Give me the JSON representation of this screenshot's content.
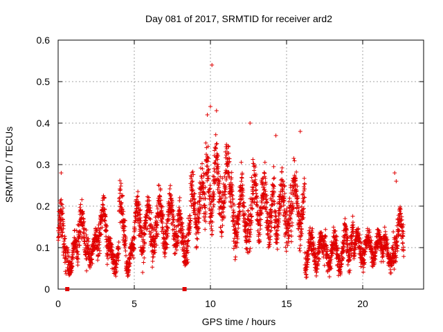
{
  "chart_data": {
    "type": "scatter",
    "title": "Day 081 of 2017, SRMTID for receiver ard2",
    "xlabel": "GPS time / hours",
    "ylabel": "SRMTID / TECUs",
    "xlim": [
      0,
      24
    ],
    "ylim": [
      0,
      0.6
    ],
    "xticks": [
      0,
      5,
      10,
      15,
      20
    ],
    "xtick_labels": [
      "0",
      "5",
      "10",
      "15",
      "20"
    ],
    "yticks": [
      0,
      0.1,
      0.2,
      0.3,
      0.4,
      0.5,
      0.6
    ],
    "ytick_labels": [
      "0",
      "0.1",
      "0.2",
      "0.3",
      "0.4",
      "0.5",
      "0.6"
    ],
    "grid": true,
    "marker": "plus",
    "color": "#e00000",
    "outliers": [
      {
        "x": 10.1,
        "y": 0.54
      },
      {
        "x": 10.0,
        "y": 0.44
      },
      {
        "x": 10.4,
        "y": 0.43
      },
      {
        "x": 12.6,
        "y": 0.4
      },
      {
        "x": 9.8,
        "y": 0.42
      },
      {
        "x": 14.3,
        "y": 0.37
      },
      {
        "x": 15.9,
        "y": 0.38
      },
      {
        "x": 22.1,
        "y": 0.28
      },
      {
        "x": 22.2,
        "y": 0.26
      },
      {
        "x": 8.3,
        "y": 0.0
      },
      {
        "x": 0.6,
        "y": 0.0
      },
      {
        "x": 0.2,
        "y": 0.28
      }
    ],
    "segments": [
      {
        "x0": 0.0,
        "x1": 0.55,
        "mean": 0.13,
        "spread": 0.09
      },
      {
        "x0": 0.6,
        "x1": 1.3,
        "mean": 0.08,
        "spread": 0.06
      },
      {
        "x0": 1.3,
        "x1": 1.95,
        "mean": 0.13,
        "spread": 0.08
      },
      {
        "x0": 1.95,
        "x1": 2.6,
        "mean": 0.1,
        "spread": 0.05
      },
      {
        "x0": 2.6,
        "x1": 3.2,
        "mean": 0.15,
        "spread": 0.08
      },
      {
        "x0": 3.2,
        "x1": 4.0,
        "mean": 0.08,
        "spread": 0.05
      },
      {
        "x0": 4.0,
        "x1": 4.45,
        "mean": 0.17,
        "spread": 0.09
      },
      {
        "x0": 4.45,
        "x1": 5.0,
        "mean": 0.08,
        "spread": 0.05
      },
      {
        "x0": 5.0,
        "x1": 6.5,
        "mean": 0.15,
        "spread": 0.09
      },
      {
        "x0": 6.5,
        "x1": 8.0,
        "mean": 0.16,
        "spread": 0.09
      },
      {
        "x0": 8.0,
        "x1": 8.7,
        "mean": 0.12,
        "spread": 0.08
      },
      {
        "x0": 8.7,
        "x1": 9.7,
        "mean": 0.2,
        "spread": 0.1
      },
      {
        "x0": 9.7,
        "x1": 11.3,
        "mean": 0.25,
        "spread": 0.12
      },
      {
        "x0": 11.3,
        "x1": 12.5,
        "mean": 0.18,
        "spread": 0.1
      },
      {
        "x0": 12.5,
        "x1": 13.2,
        "mean": 0.2,
        "spread": 0.11
      },
      {
        "x0": 13.2,
        "x1": 14.2,
        "mean": 0.2,
        "spread": 0.1
      },
      {
        "x0": 14.2,
        "x1": 15.3,
        "mean": 0.19,
        "spread": 0.1
      },
      {
        "x0": 15.3,
        "x1": 16.2,
        "mean": 0.2,
        "spread": 0.11
      },
      {
        "x0": 16.2,
        "x1": 17.5,
        "mean": 0.09,
        "spread": 0.06
      },
      {
        "x0": 17.5,
        "x1": 18.8,
        "mean": 0.09,
        "spread": 0.06
      },
      {
        "x0": 18.8,
        "x1": 19.4,
        "mean": 0.12,
        "spread": 0.07
      },
      {
        "x0": 19.4,
        "x1": 21.3,
        "mean": 0.1,
        "spread": 0.05
      },
      {
        "x0": 21.3,
        "x1": 22.0,
        "mean": 0.09,
        "spread": 0.05
      },
      {
        "x0": 22.0,
        "x1": 22.7,
        "mean": 0.13,
        "spread": 0.08
      }
    ]
  }
}
